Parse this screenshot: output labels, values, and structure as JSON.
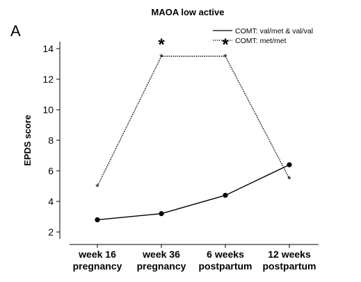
{
  "chart_data": {
    "type": "line",
    "title": "MAOA low active",
    "panel_label": "A",
    "ylabel": "EPDS score",
    "xlabel": "",
    "ylim": [
      2,
      14
    ],
    "yticks": [
      2,
      4,
      6,
      8,
      10,
      12,
      14
    ],
    "categories": [
      [
        "week 16",
        "pregnancy"
      ],
      [
        "week 36",
        "pregnancy"
      ],
      [
        "6 weeks",
        "postpartum"
      ],
      [
        "12 weeks",
        "postpartum"
      ]
    ],
    "series": [
      {
        "name": "COMT: val/met & val/val",
        "line": "solid",
        "marker": "circle",
        "values": [
          2.8,
          3.2,
          4.4,
          6.4
        ]
      },
      {
        "name": "COMT: met/met",
        "line": "dotted",
        "marker": "asterisk",
        "values": [
          5.0,
          13.5,
          13.5,
          5.5
        ]
      }
    ],
    "significance_markers": [
      {
        "category_index": 1,
        "label": "*"
      },
      {
        "category_index": 2,
        "label": "*"
      }
    ],
    "legend_position": "top-right",
    "grid": false
  }
}
